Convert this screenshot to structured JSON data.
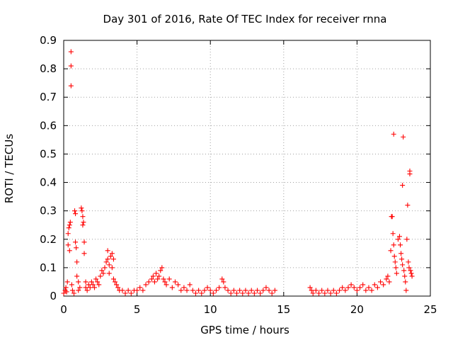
{
  "chart_data": {
    "type": "scatter",
    "title": "Day 301 of 2016, Rate Of TEC Index for receiver rnna",
    "xlabel": "GPS time / hours",
    "ylabel": "ROTI / TECUs",
    "xlim": [
      0,
      25
    ],
    "ylim": [
      0,
      0.9
    ],
    "xticks": [
      "0",
      "5",
      "10",
      "15",
      "20",
      "25"
    ],
    "yticks": [
      "0",
      "0.1",
      "0.2",
      "0.3",
      "0.4",
      "0.5",
      "0.6",
      "0.7",
      "0.8",
      "0.9"
    ],
    "grid": true,
    "marker": "+",
    "color": "#ff0000",
    "series": [
      {
        "points": [
          [
            0.0,
            0.01
          ],
          [
            0.1,
            0.02
          ],
          [
            0.15,
            0.03
          ],
          [
            0.2,
            0.015
          ],
          [
            0.25,
            0.05
          ],
          [
            0.3,
            0.18
          ],
          [
            0.3,
            0.22
          ],
          [
            0.35,
            0.24
          ],
          [
            0.4,
            0.25
          ],
          [
            0.4,
            0.16
          ],
          [
            0.45,
            0.26
          ],
          [
            0.5,
            0.86
          ],
          [
            0.5,
            0.81
          ],
          [
            0.5,
            0.74
          ],
          [
            0.55,
            0.04
          ],
          [
            0.6,
            0.02
          ],
          [
            0.7,
            0.01
          ],
          [
            0.75,
            0.3
          ],
          [
            0.8,
            0.29
          ],
          [
            0.8,
            0.19
          ],
          [
            0.85,
            0.17
          ],
          [
            0.9,
            0.12
          ],
          [
            0.9,
            0.07
          ],
          [
            1.0,
            0.05
          ],
          [
            1.0,
            0.02
          ],
          [
            1.1,
            0.03
          ],
          [
            1.2,
            0.31
          ],
          [
            1.25,
            0.3
          ],
          [
            1.3,
            0.28
          ],
          [
            1.3,
            0.25
          ],
          [
            1.35,
            0.26
          ],
          [
            1.4,
            0.19
          ],
          [
            1.4,
            0.15
          ],
          [
            1.5,
            0.05
          ],
          [
            1.5,
            0.03
          ],
          [
            1.6,
            0.02
          ],
          [
            1.7,
            0.04
          ],
          [
            1.8,
            0.03
          ],
          [
            1.9,
            0.05
          ],
          [
            2.0,
            0.04
          ],
          [
            2.1,
            0.03
          ],
          [
            2.2,
            0.06
          ],
          [
            2.3,
            0.05
          ],
          [
            2.4,
            0.04
          ],
          [
            2.5,
            0.07
          ],
          [
            2.6,
            0.09
          ],
          [
            2.7,
            0.08
          ],
          [
            2.8,
            0.1
          ],
          [
            2.9,
            0.12
          ],
          [
            3.0,
            0.16
          ],
          [
            3.0,
            0.13
          ],
          [
            3.1,
            0.11
          ],
          [
            3.1,
            0.08
          ],
          [
            3.2,
            0.14
          ],
          [
            3.3,
            0.15
          ],
          [
            3.3,
            0.1
          ],
          [
            3.4,
            0.13
          ],
          [
            3.4,
            0.06
          ],
          [
            3.5,
            0.05
          ],
          [
            3.6,
            0.04
          ],
          [
            3.7,
            0.03
          ],
          [
            3.8,
            0.02
          ],
          [
            4.0,
            0.02
          ],
          [
            4.2,
            0.01
          ],
          [
            4.4,
            0.02
          ],
          [
            4.6,
            0.01
          ],
          [
            4.8,
            0.02
          ],
          [
            5.0,
            0.02
          ],
          [
            5.2,
            0.03
          ],
          [
            5.4,
            0.02
          ],
          [
            5.6,
            0.04
          ],
          [
            5.8,
            0.05
          ],
          [
            6.0,
            0.06
          ],
          [
            6.1,
            0.07
          ],
          [
            6.2,
            0.05
          ],
          [
            6.3,
            0.08
          ],
          [
            6.4,
            0.06
          ],
          [
            6.5,
            0.07
          ],
          [
            6.6,
            0.09
          ],
          [
            6.7,
            0.1
          ],
          [
            6.8,
            0.06
          ],
          [
            6.9,
            0.05
          ],
          [
            7.0,
            0.04
          ],
          [
            7.2,
            0.06
          ],
          [
            7.4,
            0.03
          ],
          [
            7.6,
            0.05
          ],
          [
            7.8,
            0.04
          ],
          [
            8.0,
            0.02
          ],
          [
            8.2,
            0.03
          ],
          [
            8.4,
            0.02
          ],
          [
            8.6,
            0.04
          ],
          [
            8.8,
            0.02
          ],
          [
            9.0,
            0.01
          ],
          [
            9.2,
            0.02
          ],
          [
            9.4,
            0.01
          ],
          [
            9.6,
            0.02
          ],
          [
            9.8,
            0.03
          ],
          [
            10.0,
            0.02
          ],
          [
            10.2,
            0.01
          ],
          [
            10.4,
            0.02
          ],
          [
            10.6,
            0.03
          ],
          [
            10.8,
            0.06
          ],
          [
            10.9,
            0.05
          ],
          [
            11.0,
            0.03
          ],
          [
            11.2,
            0.02
          ],
          [
            11.4,
            0.01
          ],
          [
            11.6,
            0.02
          ],
          [
            11.8,
            0.01
          ],
          [
            12.0,
            0.02
          ],
          [
            12.2,
            0.01
          ],
          [
            12.4,
            0.02
          ],
          [
            12.6,
            0.01
          ],
          [
            12.8,
            0.02
          ],
          [
            13.0,
            0.01
          ],
          [
            13.2,
            0.02
          ],
          [
            13.4,
            0.01
          ],
          [
            13.6,
            0.02
          ],
          [
            13.8,
            0.03
          ],
          [
            14.0,
            0.02
          ],
          [
            14.2,
            0.01
          ],
          [
            14.4,
            0.02
          ],
          [
            16.8,
            0.03
          ],
          [
            16.9,
            0.02
          ],
          [
            17.0,
            0.01
          ],
          [
            17.2,
            0.02
          ],
          [
            17.4,
            0.01
          ],
          [
            17.6,
            0.02
          ],
          [
            17.8,
            0.01
          ],
          [
            18.0,
            0.02
          ],
          [
            18.2,
            0.01
          ],
          [
            18.4,
            0.02
          ],
          [
            18.6,
            0.01
          ],
          [
            18.8,
            0.02
          ],
          [
            19.0,
            0.03
          ],
          [
            19.2,
            0.02
          ],
          [
            19.4,
            0.03
          ],
          [
            19.6,
            0.04
          ],
          [
            19.8,
            0.03
          ],
          [
            20.0,
            0.02
          ],
          [
            20.2,
            0.03
          ],
          [
            20.4,
            0.04
          ],
          [
            20.6,
            0.02
          ],
          [
            20.8,
            0.03
          ],
          [
            21.0,
            0.02
          ],
          [
            21.2,
            0.04
          ],
          [
            21.4,
            0.03
          ],
          [
            21.6,
            0.05
          ],
          [
            21.8,
            0.04
          ],
          [
            22.0,
            0.06
          ],
          [
            22.1,
            0.07
          ],
          [
            22.2,
            0.05
          ],
          [
            22.3,
            0.16
          ],
          [
            22.35,
            0.28
          ],
          [
            22.4,
            0.28
          ],
          [
            22.45,
            0.22
          ],
          [
            22.5,
            0.57
          ],
          [
            22.5,
            0.18
          ],
          [
            22.55,
            0.14
          ],
          [
            22.6,
            0.12
          ],
          [
            22.65,
            0.1
          ],
          [
            22.7,
            0.08
          ],
          [
            22.8,
            0.2
          ],
          [
            22.9,
            0.21
          ],
          [
            22.95,
            0.18
          ],
          [
            23.0,
            0.15
          ],
          [
            23.05,
            0.13
          ],
          [
            23.1,
            0.39
          ],
          [
            23.1,
            0.11
          ],
          [
            23.15,
            0.56
          ],
          [
            23.2,
            0.09
          ],
          [
            23.25,
            0.07
          ],
          [
            23.3,
            0.05
          ],
          [
            23.35,
            0.02
          ],
          [
            23.4,
            0.2
          ],
          [
            23.45,
            0.32
          ],
          [
            23.5,
            0.12
          ],
          [
            23.55,
            0.1
          ],
          [
            23.6,
            0.44
          ],
          [
            23.6,
            0.43
          ],
          [
            23.65,
            0.09
          ],
          [
            23.7,
            0.08
          ],
          [
            23.75,
            0.07
          ]
        ]
      }
    ]
  }
}
